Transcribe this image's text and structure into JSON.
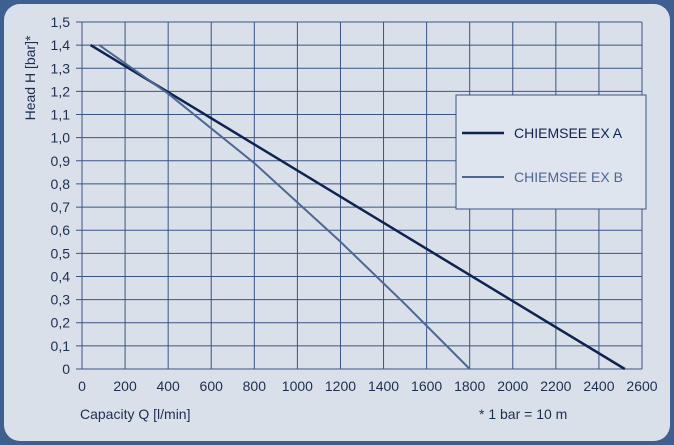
{
  "chart_data": {
    "type": "line",
    "title": "",
    "xlabel": "Capacity Q [l/min]",
    "ylabel": "Head H [bar]*",
    "footnote": "* 1 bar = 10 m",
    "xlim": [
      0,
      2600
    ],
    "ylim": [
      0,
      1.5
    ],
    "x_ticks": [
      0,
      200,
      400,
      600,
      800,
      1000,
      1200,
      1400,
      1600,
      1800,
      2000,
      2200,
      2400,
      2600
    ],
    "y_ticks": [
      "0",
      "0,1",
      "0,2",
      "0,3",
      "0,4",
      "0,5",
      "0,6",
      "0,7",
      "0,8",
      "0,9",
      "1,0",
      "1,1",
      "1,2",
      "1,3",
      "1,4",
      "1,5"
    ],
    "grid": true,
    "legend_position": "right",
    "series": [
      {
        "name": "CHIEMSEE EX A",
        "color": "#0f2350",
        "points": [
          [
            40,
            1.4
          ],
          [
            2520,
            0
          ]
        ]
      },
      {
        "name": "CHIEMSEE EX B",
        "color": "#4e6692",
        "points": [
          [
            80,
            1.4
          ],
          [
            400,
            1.19
          ],
          [
            800,
            0.89
          ],
          [
            1200,
            0.55
          ],
          [
            1500,
            0.28
          ],
          [
            1800,
            0
          ]
        ]
      }
    ]
  }
}
